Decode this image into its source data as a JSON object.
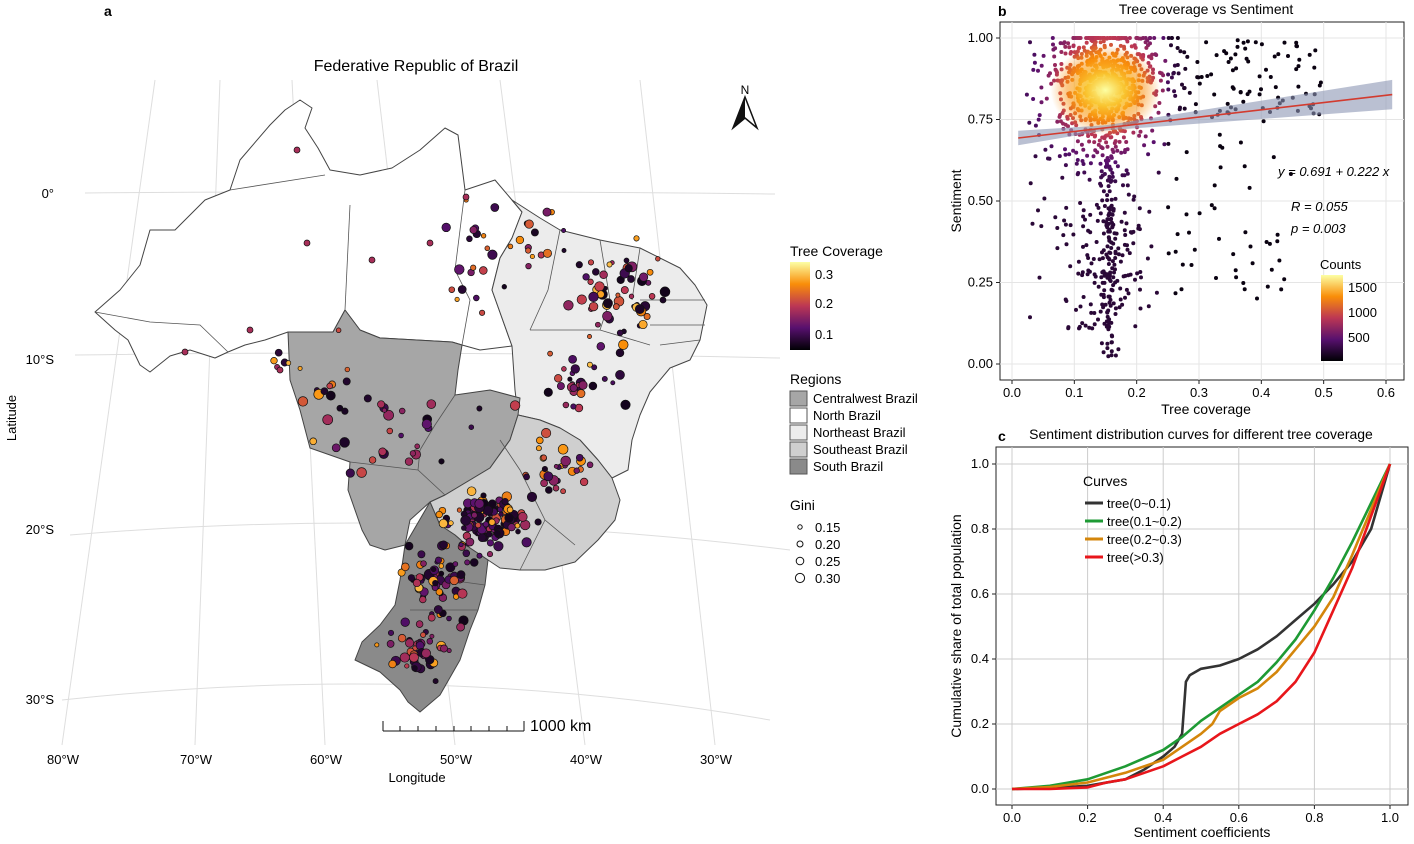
{
  "panel_a": {
    "letter": "a",
    "title": "Federative Republic of Brazil",
    "xlabel": "Longitude",
    "ylabel": "Latitude",
    "lon_ticks": [
      "80°W",
      "70°W",
      "60°W",
      "50°W",
      "40°W",
      "30°W"
    ],
    "lat_ticks": [
      "0°",
      "10°S",
      "20°S",
      "30°S"
    ],
    "north_label": "N",
    "scalebar_label": "1000 km",
    "legend_tree_title": "Tree Coverage",
    "legend_tree_ticks": [
      "0.3",
      "0.2",
      "0.1"
    ],
    "legend_regions_title": "Regions",
    "regions": [
      {
        "name": "Centralwest Brazil",
        "color": "#a6a6a6"
      },
      {
        "name": "North Brazil",
        "color": "#ffffff"
      },
      {
        "name": "Northeast Brazil",
        "color": "#ececec"
      },
      {
        "name": "Southeast Brazil",
        "color": "#cfcfcf"
      },
      {
        "name": "South Brazil",
        "color": "#8a8a8a"
      }
    ],
    "legend_gini_title": "Gini",
    "gini_values": [
      "0.15",
      "0.20",
      "0.25",
      "0.30"
    ]
  },
  "panel_b": {
    "letter": "b",
    "title": "Tree coverage vs Sentiment",
    "xlabel": "Tree coverage",
    "ylabel": "Sentiment",
    "equation": "y = 0.691 + 0.222 x",
    "r_text": "R = 0.055",
    "p_text": "p = 0.003",
    "counts_title": "Counts",
    "counts_ticks": [
      "1500",
      "1000",
      "500"
    ]
  },
  "panel_c": {
    "letter": "c",
    "title": "Sentiment distribution curves for different tree coverage",
    "xlabel": "Sentiment coefficients",
    "ylabel": "Cumulative share of total population",
    "legend_title": "Curves"
  },
  "chart_data": [
    {
      "type": "scatter",
      "title": "Tree coverage vs Sentiment",
      "xlabel": "Tree coverage",
      "ylabel": "Sentiment",
      "xlim": [
        0,
        0.62
      ],
      "ylim": [
        0,
        1
      ],
      "x_ticks": [
        0.0,
        0.1,
        0.2,
        0.3,
        0.4,
        0.5,
        0.6
      ],
      "y_ticks": [
        0.0,
        0.25,
        0.5,
        0.75,
        1.0
      ],
      "fit": {
        "intercept": 0.691,
        "slope": 0.222,
        "R": 0.055,
        "p": 0.003
      },
      "color_scale": {
        "label": "Counts",
        "ticks": [
          500,
          1000,
          1500
        ],
        "colors": [
          "#000004",
          "#57106e",
          "#bc3754",
          "#f98e09",
          "#fcffa4"
        ]
      },
      "grid": true
    },
    {
      "type": "line",
      "title": "Sentiment distribution curves for different tree coverage",
      "xlabel": "Sentiment coefficients",
      "ylabel": "Cumulative share of total population",
      "xlim": [
        0,
        1
      ],
      "ylim": [
        0,
        1
      ],
      "x_ticks": [
        0.0,
        0.2,
        0.4,
        0.6,
        0.8,
        1.0
      ],
      "y_ticks": [
        0.0,
        0.2,
        0.4,
        0.6,
        0.8,
        1.0
      ],
      "legend": "top-left",
      "grid": true,
      "series": [
        {
          "name": "tree(0~0.1)",
          "color": "#333333",
          "x": [
            0.0,
            0.1,
            0.2,
            0.3,
            0.35,
            0.4,
            0.43,
            0.45,
            0.46,
            0.47,
            0.5,
            0.55,
            0.6,
            0.65,
            0.7,
            0.75,
            0.8,
            0.85,
            0.9,
            0.95,
            1.0
          ],
          "y": [
            0.0,
            0.003,
            0.01,
            0.03,
            0.06,
            0.1,
            0.13,
            0.17,
            0.33,
            0.35,
            0.37,
            0.38,
            0.4,
            0.43,
            0.47,
            0.52,
            0.57,
            0.63,
            0.7,
            0.8,
            1.0
          ]
        },
        {
          "name": "tree(0.1~0.2)",
          "color": "#1e9a34",
          "x": [
            0.0,
            0.1,
            0.2,
            0.3,
            0.4,
            0.45,
            0.5,
            0.55,
            0.6,
            0.65,
            0.7,
            0.75,
            0.8,
            0.85,
            0.9,
            0.95,
            1.0
          ],
          "y": [
            0.0,
            0.01,
            0.03,
            0.07,
            0.12,
            0.16,
            0.21,
            0.25,
            0.29,
            0.33,
            0.39,
            0.46,
            0.55,
            0.65,
            0.76,
            0.88,
            1.0
          ]
        },
        {
          "name": "tree(0.2~0.3)",
          "color": "#d4860b",
          "x": [
            0.0,
            0.1,
            0.2,
            0.3,
            0.4,
            0.45,
            0.5,
            0.53,
            0.55,
            0.6,
            0.65,
            0.7,
            0.75,
            0.8,
            0.85,
            0.9,
            0.95,
            1.0
          ],
          "y": [
            0.0,
            0.006,
            0.02,
            0.05,
            0.09,
            0.13,
            0.17,
            0.2,
            0.24,
            0.28,
            0.31,
            0.36,
            0.43,
            0.5,
            0.59,
            0.72,
            0.86,
            1.0
          ]
        },
        {
          "name": "tree(>0.3)",
          "color": "#e8161b",
          "x": [
            0.0,
            0.1,
            0.2,
            0.25,
            0.3,
            0.35,
            0.4,
            0.45,
            0.5,
            0.55,
            0.6,
            0.65,
            0.7,
            0.75,
            0.8,
            0.85,
            0.9,
            0.95,
            1.0
          ],
          "y": [
            0.0,
            0.0,
            0.005,
            0.02,
            0.03,
            0.05,
            0.07,
            0.1,
            0.13,
            0.17,
            0.2,
            0.23,
            0.27,
            0.33,
            0.42,
            0.55,
            0.68,
            0.84,
            1.0
          ]
        }
      ]
    }
  ]
}
